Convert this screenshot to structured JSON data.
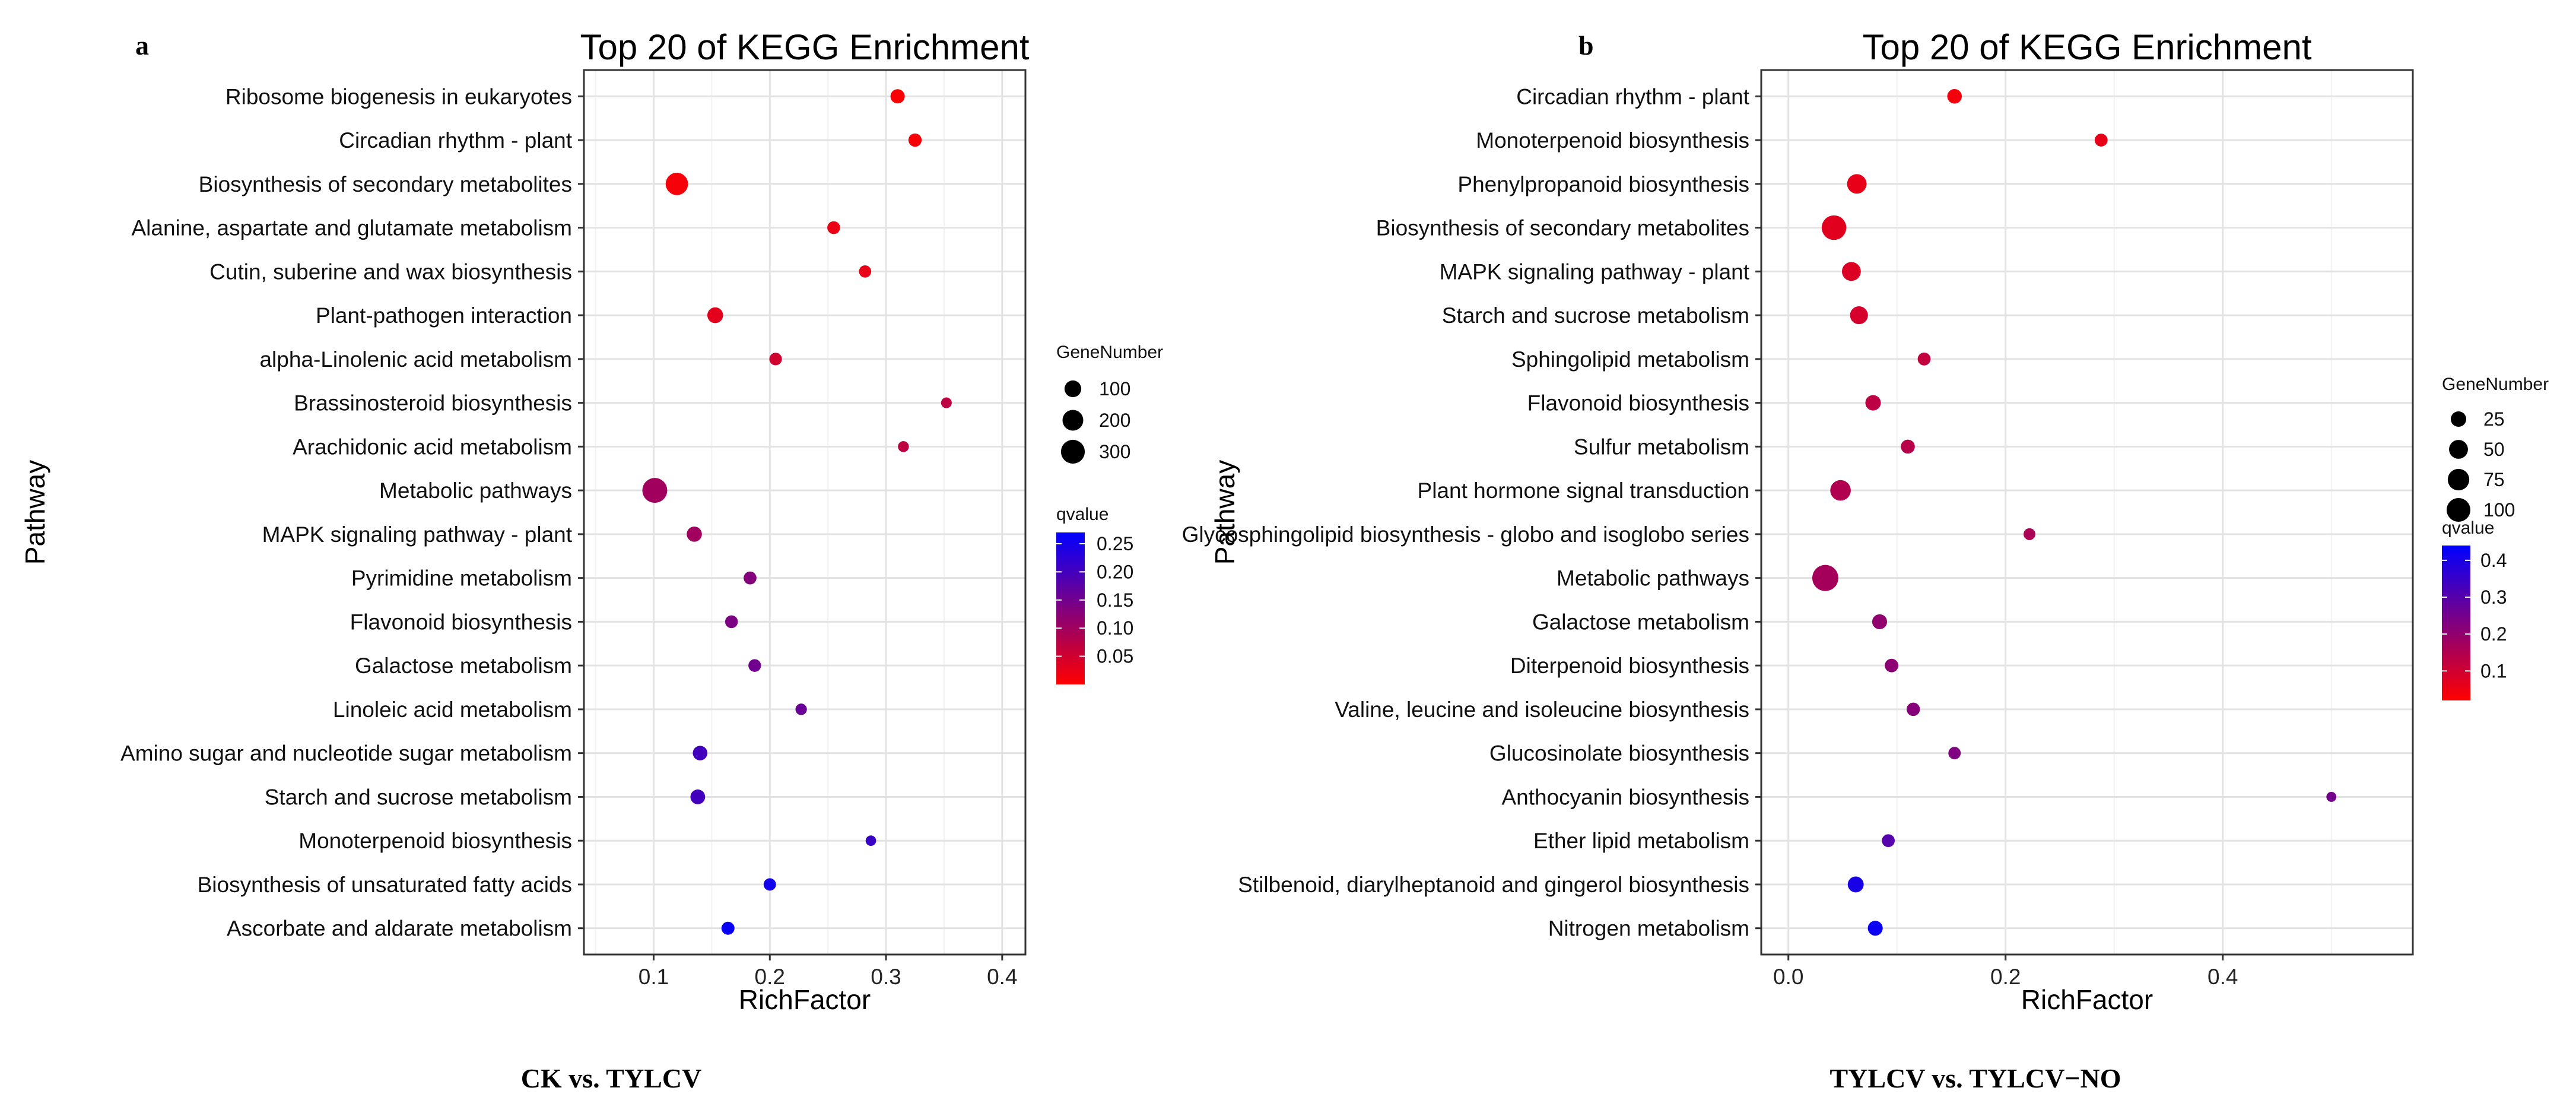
{
  "chart_data": [
    {
      "panel_label": "a",
      "type": "scatter",
      "title": "Top 20 of KEGG Enrichment",
      "xlabel": "RichFactor",
      "ylabel": "Pathway",
      "caption": "CK vs. TYLCV",
      "xlim": [
        0.04,
        0.42
      ],
      "xticks": [
        0.1,
        0.2,
        0.3,
        0.4
      ],
      "xtick_labels": [
        "0.1",
        "0.2",
        "0.3",
        "0.4"
      ],
      "grid": true,
      "size_legend": {
        "title": "GeneNumber",
        "values": [
          100,
          200,
          300
        ],
        "labels": [
          "100",
          "200",
          "300"
        ]
      },
      "color_legend": {
        "title": "qvalue",
        "min": 0.0,
        "max": 0.27,
        "low_color": "#ff0000",
        "high_color": "#0000ff",
        "ticks": [
          0.05,
          0.1,
          0.15,
          0.2,
          0.25
        ],
        "tick_labels": [
          "0.05",
          "0.10",
          "0.15",
          "0.20",
          "0.25"
        ]
      },
      "points": [
        {
          "pathway": "Ribosome biogenesis in eukaryotes",
          "richfactor": 0.31,
          "genes": 55,
          "qvalue": 0.005
        },
        {
          "pathway": "Circadian rhythm - plant",
          "richfactor": 0.325,
          "genes": 40,
          "qvalue": 0.008
        },
        {
          "pathway": "Biosynthesis of secondary metabolites",
          "richfactor": 0.12,
          "genes": 250,
          "qvalue": 0.01
        },
        {
          "pathway": "Alanine, aspartate and glutamate metabolism",
          "richfactor": 0.255,
          "genes": 35,
          "qvalue": 0.02
        },
        {
          "pathway": "Cutin, suberine and wax biosynthesis",
          "richfactor": 0.282,
          "genes": 28,
          "qvalue": 0.025
        },
        {
          "pathway": "Plant-pathogen interaction",
          "richfactor": 0.153,
          "genes": 80,
          "qvalue": 0.03
        },
        {
          "pathway": "alpha-Linolenic acid metabolism",
          "richfactor": 0.205,
          "genes": 32,
          "qvalue": 0.05
        },
        {
          "pathway": "Brassinosteroid biosynthesis",
          "richfactor": 0.352,
          "genes": 14,
          "qvalue": 0.07
        },
        {
          "pathway": "Arachidonic acid metabolism",
          "richfactor": 0.315,
          "genes": 16,
          "qvalue": 0.07
        },
        {
          "pathway": "Metabolic pathways",
          "richfactor": 0.101,
          "genes": 340,
          "qvalue": 0.1
        },
        {
          "pathway": "MAPK signaling pathway - plant",
          "richfactor": 0.135,
          "genes": 70,
          "qvalue": 0.1
        },
        {
          "pathway": "Pyrimidine metabolism",
          "richfactor": 0.183,
          "genes": 36,
          "qvalue": 0.13
        },
        {
          "pathway": "Flavonoid biosynthesis",
          "richfactor": 0.167,
          "genes": 34,
          "qvalue": 0.14
        },
        {
          "pathway": "Galactose metabolism",
          "richfactor": 0.187,
          "genes": 33,
          "qvalue": 0.15
        },
        {
          "pathway": "Linoleic acid metabolism",
          "richfactor": 0.227,
          "genes": 20,
          "qvalue": 0.16
        },
        {
          "pathway": "Amino sugar and nucleotide sugar metabolism",
          "richfactor": 0.14,
          "genes": 60,
          "qvalue": 0.2
        },
        {
          "pathway": "Starch and sucrose metabolism",
          "richfactor": 0.138,
          "genes": 62,
          "qvalue": 0.2
        },
        {
          "pathway": "Monoterpenoid biosynthesis",
          "richfactor": 0.287,
          "genes": 12,
          "qvalue": 0.21
        },
        {
          "pathway": "Biosynthesis of unsaturated fatty acids",
          "richfactor": 0.2,
          "genes": 30,
          "qvalue": 0.25
        },
        {
          "pathway": "Ascorbate and aldarate metabolism",
          "richfactor": 0.164,
          "genes": 38,
          "qvalue": 0.26
        }
      ]
    },
    {
      "panel_label": "b",
      "type": "scatter",
      "title": "Top 20 of KEGG Enrichment",
      "xlabel": "RichFactor",
      "ylabel": "Pathway",
      "caption": "TYLCV vs. TYLCV−NO",
      "xlim": [
        -0.025,
        0.575
      ],
      "xticks": [
        0.0,
        0.2,
        0.4
      ],
      "xtick_labels": [
        "0.0",
        "0.2",
        "0.4"
      ],
      "grid": true,
      "size_legend": {
        "title": "GeneNumber",
        "values": [
          25,
          50,
          75,
          100
        ],
        "labels": [
          "25",
          "50",
          "75",
          "100"
        ]
      },
      "color_legend": {
        "title": "qvalue",
        "min": 0.02,
        "max": 0.44,
        "low_color": "#ff0000",
        "high_color": "#0000ff",
        "ticks": [
          0.1,
          0.2,
          0.3,
          0.4
        ],
        "tick_labels": [
          "0.1",
          "0.2",
          "0.3",
          "0.4"
        ]
      },
      "points": [
        {
          "pathway": "Circadian rhythm - plant",
          "richfactor": 0.153,
          "genes": 20,
          "qvalue": 0.04
        },
        {
          "pathway": "Monoterpenoid biosynthesis",
          "richfactor": 0.288,
          "genes": 12,
          "qvalue": 0.06
        },
        {
          "pathway": "Phenylpropanoid biosynthesis",
          "richfactor": 0.063,
          "genes": 55,
          "qvalue": 0.06
        },
        {
          "pathway": "Biosynthesis of secondary metabolites",
          "richfactor": 0.042,
          "genes": 110,
          "qvalue": 0.07
        },
        {
          "pathway": "MAPK signaling pathway - plant",
          "richfactor": 0.058,
          "genes": 50,
          "qvalue": 0.08
        },
        {
          "pathway": "Starch and sucrose metabolism",
          "richfactor": 0.065,
          "genes": 42,
          "qvalue": 0.09
        },
        {
          "pathway": "Sphingolipid metabolism",
          "richfactor": 0.125,
          "genes": 12,
          "qvalue": 0.12
        },
        {
          "pathway": "Flavonoid biosynthesis",
          "richfactor": 0.078,
          "genes": 25,
          "qvalue": 0.13
        },
        {
          "pathway": "Sulfur metabolism",
          "richfactor": 0.11,
          "genes": 17,
          "qvalue": 0.14
        },
        {
          "pathway": "Plant hormone signal transduction",
          "richfactor": 0.048,
          "genes": 65,
          "qvalue": 0.15
        },
        {
          "pathway": "Glycosphingolipid biosynthesis - globo and isoglobo series",
          "richfactor": 0.222,
          "genes": 8,
          "qvalue": 0.16
        },
        {
          "pathway": "Metabolic pathways",
          "richfactor": 0.034,
          "genes": 130,
          "qvalue": 0.17
        },
        {
          "pathway": "Galactose metabolism",
          "richfactor": 0.084,
          "genes": 22,
          "qvalue": 0.2
        },
        {
          "pathway": "Diterpenoid biosynthesis",
          "richfactor": 0.095,
          "genes": 15,
          "qvalue": 0.21
        },
        {
          "pathway": "Valine, leucine and isoleucine biosynthesis",
          "richfactor": 0.115,
          "genes": 14,
          "qvalue": 0.22
        },
        {
          "pathway": "Glucosinolate biosynthesis",
          "richfactor": 0.153,
          "genes": 10,
          "qvalue": 0.23
        },
        {
          "pathway": "Anthocyanin biosynthesis",
          "richfactor": 0.5,
          "genes": 3,
          "qvalue": 0.25
        },
        {
          "pathway": "Ether lipid metabolism",
          "richfactor": 0.092,
          "genes": 12,
          "qvalue": 0.3
        },
        {
          "pathway": "Stilbenoid, diarylheptanoid and gingerol biosynthesis",
          "richfactor": 0.062,
          "genes": 28,
          "qvalue": 0.4
        },
        {
          "pathway": "Nitrogen metabolism",
          "richfactor": 0.08,
          "genes": 22,
          "qvalue": 0.42
        }
      ]
    }
  ]
}
